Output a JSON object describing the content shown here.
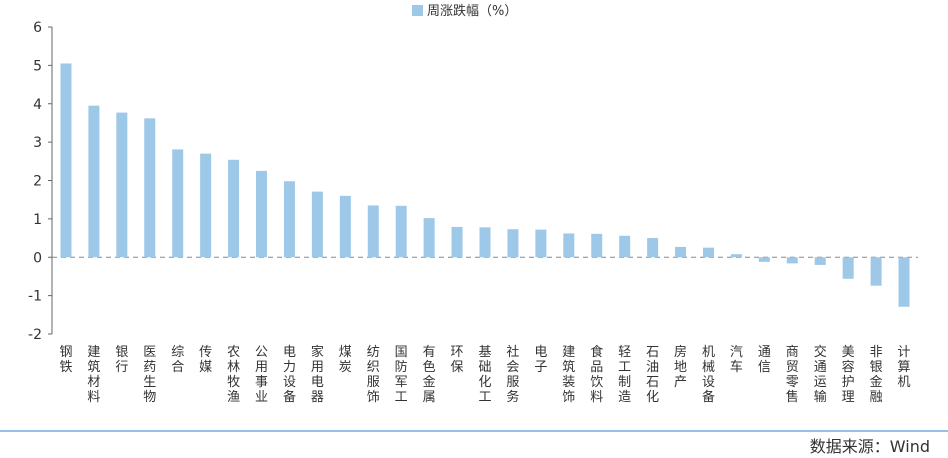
{
  "chart_data": {
    "type": "bar",
    "legend": {
      "label": "周涨跌幅（%）",
      "position": "top"
    },
    "source": "数据来源：Wind",
    "categories": [
      "钢铁",
      "建筑材料",
      "银行",
      "医药生物",
      "综合",
      "传媒",
      "农林牧渔",
      "公用事业",
      "电力设备",
      "家用电器",
      "煤炭",
      "纺织服饰",
      "国防军工",
      "有色金属",
      "环保",
      "基础化工",
      "社会服务",
      "电子",
      "建筑装饰",
      "食品饮料",
      "轻工制造",
      "石油石化",
      "房地产",
      "机械设备",
      "汽车",
      "通信",
      "商贸零售",
      "交通运输",
      "美容护理",
      "非银金融",
      "计算机"
    ],
    "series": [
      {
        "name": "周涨跌幅（%）",
        "values": [
          5.05,
          3.95,
          3.77,
          3.62,
          2.81,
          2.7,
          2.54,
          2.25,
          1.98,
          1.71,
          1.6,
          1.35,
          1.34,
          1.02,
          0.79,
          0.78,
          0.73,
          0.72,
          0.62,
          0.61,
          0.56,
          0.5,
          0.27,
          0.25,
          0.08,
          -0.12,
          -0.16,
          -0.2,
          -0.56,
          -0.74,
          -1.29
        ]
      }
    ],
    "ylim": [
      -2,
      6
    ],
    "yticks": [
      -2,
      -1,
      0,
      1,
      2,
      3,
      4,
      5,
      6
    ],
    "bar_color": "#9dc8e8",
    "grid": false
  }
}
